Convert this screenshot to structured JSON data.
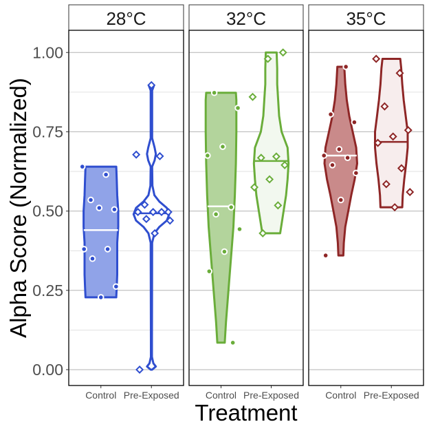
{
  "chart_data": {
    "type": "violin",
    "ylabel": "Alpha Score (Normalized)",
    "xlabel": "Treatment",
    "ylim": [
      -0.05,
      1.07
    ],
    "yticks": [
      0.0,
      0.25,
      0.5,
      0.75,
      1.0
    ],
    "ytick_labels": [
      "0.00",
      "0.25",
      "0.50",
      "0.75",
      "1.00"
    ],
    "categories": [
      "Control",
      "Pre-Exposed"
    ],
    "grid": "horizontal",
    "panels": [
      {
        "label": "28°C",
        "color": "#2f4ecf",
        "groups": [
          {
            "name": "Control",
            "fill": "#90a3e8",
            "median": 0.44,
            "points": [
              0.64,
              0.615,
              0.535,
              0.505,
              0.51,
              0.38,
              0.38,
              0.35,
              0.262,
              0.228
            ],
            "profile": [
              [
                0.228,
                0.62
              ],
              [
                0.26,
                0.64
              ],
              [
                0.3,
                0.66
              ],
              [
                0.35,
                0.66
              ],
              [
                0.4,
                0.66
              ],
              [
                0.45,
                0.7
              ],
              [
                0.5,
                0.7
              ],
              [
                0.55,
                0.66
              ],
              [
                0.6,
                0.64
              ],
              [
                0.64,
                0.62
              ]
            ]
          },
          {
            "name": "Pre-Exposed",
            "fill": "#ffffff",
            "median": 0.493,
            "points": [
              0.897,
              0.678,
              0.673,
              0.52,
              0.497,
              0.497,
              0.497,
              0.497,
              0.475,
              0.47,
              0.43,
              0.0
            ],
            "profile": [
              [
                0.0,
                0.03
              ],
              [
                0.01,
                0.18
              ],
              [
                0.02,
                0.08
              ],
              [
                0.04,
                0.02
              ],
              [
                0.1,
                0.02
              ],
              [
                0.4,
                0.03
              ],
              [
                0.43,
                0.12
              ],
              [
                0.45,
                0.32
              ],
              [
                0.47,
                0.62
              ],
              [
                0.49,
                0.72
              ],
              [
                0.51,
                0.62
              ],
              [
                0.53,
                0.32
              ],
              [
                0.55,
                0.12
              ],
              [
                0.58,
                0.04
              ],
              [
                0.64,
                0.03
              ],
              [
                0.66,
                0.13
              ],
              [
                0.68,
                0.18
              ],
              [
                0.7,
                0.13
              ],
              [
                0.73,
                0.03
              ],
              [
                0.88,
                0.03
              ],
              [
                0.895,
                0.1
              ],
              [
                0.9,
                0.03
              ]
            ]
          }
        ]
      },
      {
        "label": "32°C",
        "color": "#6aad3a",
        "groups": [
          {
            "name": "Control",
            "fill": "#b3d49c",
            "median": 0.515,
            "points": [
              0.873,
              0.825,
              0.703,
              0.675,
              0.512,
              0.49,
              0.443,
              0.372,
              0.31,
              0.085
            ],
            "profile": [
              [
                0.085,
                0.15
              ],
              [
                0.15,
                0.2
              ],
              [
                0.25,
                0.3
              ],
              [
                0.35,
                0.4
              ],
              [
                0.45,
                0.5
              ],
              [
                0.55,
                0.56
              ],
              [
                0.65,
                0.6
              ],
              [
                0.75,
                0.62
              ],
              [
                0.85,
                0.62
              ],
              [
                0.873,
                0.6
              ]
            ]
          },
          {
            "name": "Pre-Exposed",
            "fill": "#f2f8ef",
            "median": 0.658,
            "points": [
              1.0,
              0.98,
              0.86,
              0.672,
              0.668,
              0.645,
              0.6,
              0.575,
              0.518,
              0.43
            ],
            "profile": [
              [
                0.43,
                0.36
              ],
              [
                0.5,
                0.5
              ],
              [
                0.55,
                0.6
              ],
              [
                0.6,
                0.66
              ],
              [
                0.65,
                0.7
              ],
              [
                0.7,
                0.66
              ],
              [
                0.75,
                0.42
              ],
              [
                0.8,
                0.32
              ],
              [
                0.85,
                0.28
              ],
              [
                0.9,
                0.24
              ],
              [
                0.95,
                0.24
              ],
              [
                1.0,
                0.22
              ]
            ]
          }
        ]
      },
      {
        "label": "35°C",
        "color": "#8e2626",
        "groups": [
          {
            "name": "Control",
            "fill": "#c98a8a",
            "median": 0.675,
            "points": [
              0.955,
              0.805,
              0.78,
              0.695,
              0.675,
              0.668,
              0.645,
              0.62,
              0.535,
              0.36
            ],
            "profile": [
              [
                0.36,
                0.1
              ],
              [
                0.4,
                0.12
              ],
              [
                0.45,
                0.18
              ],
              [
                0.5,
                0.3
              ],
              [
                0.55,
                0.42
              ],
              [
                0.6,
                0.56
              ],
              [
                0.65,
                0.66
              ],
              [
                0.7,
                0.62
              ],
              [
                0.75,
                0.48
              ],
              [
                0.8,
                0.34
              ],
              [
                0.85,
                0.24
              ],
              [
                0.9,
                0.18
              ],
              [
                0.955,
                0.14
              ]
            ]
          },
          {
            "name": "Pre-Exposed",
            "fill": "#f7eded",
            "median": 0.718,
            "points": [
              0.98,
              0.935,
              0.83,
              0.755,
              0.735,
              0.715,
              0.635,
              0.585,
              0.56,
              0.512
            ],
            "profile": [
              [
                0.512,
                0.44
              ],
              [
                0.55,
                0.46
              ],
              [
                0.6,
                0.52
              ],
              [
                0.65,
                0.6
              ],
              [
                0.7,
                0.66
              ],
              [
                0.75,
                0.66
              ],
              [
                0.8,
                0.58
              ],
              [
                0.85,
                0.5
              ],
              [
                0.9,
                0.44
              ],
              [
                0.95,
                0.4
              ],
              [
                0.98,
                0.36
              ]
            ]
          }
        ]
      }
    ]
  }
}
